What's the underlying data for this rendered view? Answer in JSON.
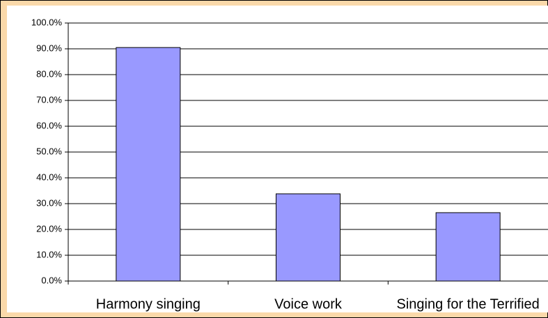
{
  "chart_data": {
    "type": "bar",
    "categories": [
      "Harmony singing",
      "Voice work",
      "Singing for the Terrified"
    ],
    "values": [
      90.5,
      33.8,
      26.5
    ],
    "color": "#9999ff",
    "ylim": [
      0,
      100
    ],
    "yticks": [
      {
        "value": 0,
        "label": "0.0%"
      },
      {
        "value": 10,
        "label": "10.0%"
      },
      {
        "value": 20,
        "label": "20.0%"
      },
      {
        "value": 30,
        "label": "30.0%"
      },
      {
        "value": 40,
        "label": "40.0%"
      },
      {
        "value": 50,
        "label": "50.0%"
      },
      {
        "value": 60,
        "label": "60.0%"
      },
      {
        "value": 70,
        "label": "70.0%"
      },
      {
        "value": 80,
        "label": "80.0%"
      },
      {
        "value": 90,
        "label": "90.0%"
      },
      {
        "value": 100,
        "label": "100.0%"
      }
    ],
    "grid": true
  }
}
